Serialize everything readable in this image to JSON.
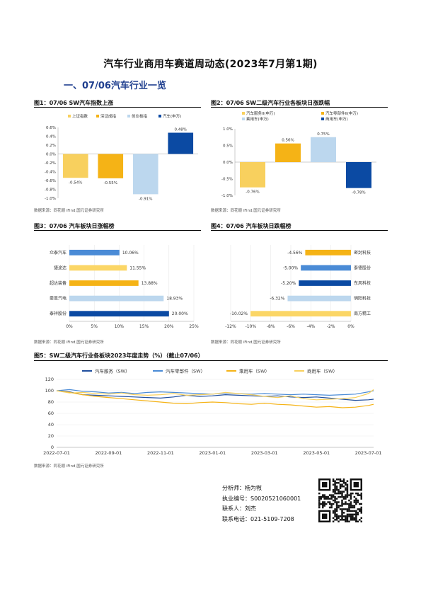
{
  "title": "汽车行业商用车赛道周动态(2023年7月第1期)",
  "section": "一、07/06汽车行业一览",
  "source_note": "数据来源：同花顺 iFind,国元证券研究所",
  "charts": {
    "fig1": {
      "title": "图1：07/06 SW汽车指数上涨",
      "chart_data": {
        "type": "bar",
        "categories": [
          "上证指数",
          "深证成指",
          "创业板指",
          "汽车(申万)"
        ],
        "values": [
          -0.54,
          -0.55,
          -0.91,
          0.48
        ],
        "value_labels": [
          "-0.54%",
          "-0.55%",
          "-0.91%",
          "0.48%"
        ],
        "colors": [
          "#f8d05e",
          "#f5b316",
          "#bcd7ee",
          "#0b4aa3"
        ],
        "yticks": [
          "0.6%",
          "0.4%",
          "0.2%",
          "0.0%",
          "-0.2%",
          "-0.4%",
          "-0.6%",
          "-0.8%",
          "-1.0%"
        ],
        "ylim": [
          -1.0,
          0.6
        ],
        "legend_position": "top"
      }
    },
    "fig2": {
      "title": "图2：07/06 SW二级汽车行业各板块日涨跌幅",
      "chart_data": {
        "type": "bar",
        "categories": [
          "汽车服务II(申万)",
          "汽车零部件II(申万)",
          "乘用车(申万)",
          "商用车(申万)"
        ],
        "values": [
          -0.76,
          0.56,
          0.75,
          -0.78
        ],
        "value_labels": [
          "-0.76%",
          "0.56%",
          "0.75%",
          "-0.78%"
        ],
        "colors": [
          "#f8d05e",
          "#f5b316",
          "#bcd7ee",
          "#0b4aa3"
        ],
        "yticks": [
          "1.0%",
          "0.5%",
          "0.0%",
          "-0.5%",
          "-1.0%"
        ],
        "ylim": [
          -1.0,
          1.0
        ],
        "legend_position": "top"
      }
    },
    "fig3": {
      "title": "图3：07/06 汽车板块日涨幅榜",
      "chart_data": {
        "type": "bar",
        "orientation": "horizontal",
        "categories": [
          "众泰汽车",
          "捷途达",
          "超达装备",
          "豪恩汽电",
          "泰祥股份"
        ],
        "values": [
          10.06,
          11.55,
          13.88,
          18.93,
          20.0
        ],
        "value_labels": [
          "10.06%",
          "11.55%",
          "13.88%",
          "18.93%",
          "20.00%"
        ],
        "colors": [
          "#4a8bd6",
          "#fbd666",
          "#f5b316",
          "#bcd7ee",
          "#0b4aa3"
        ],
        "xticks": [
          "0%",
          "5%",
          "10%",
          "15%",
          "20%",
          "25%"
        ],
        "xlim": [
          0,
          25
        ]
      }
    },
    "fig4": {
      "title": "图4：07/06 汽车板块日跌幅榜",
      "chart_data": {
        "type": "bar",
        "orientation": "horizontal",
        "categories": [
          "密封科技",
          "泰德股份",
          "东风科技",
          "明阳科技",
          "南方精工"
        ],
        "values": [
          -4.56,
          -5.0,
          -5.2,
          -6.32,
          -10.02
        ],
        "value_labels": [
          "-4.56%",
          "-5.00%",
          "-5.20%",
          "-6.32%",
          "-10.02%"
        ],
        "colors": [
          "#f5b316",
          "#4a8bd6",
          "#0b4aa3",
          "#bcd7ee",
          "#fbd666"
        ],
        "xticks": [
          "-12%",
          "-10%",
          "-8%",
          "-6%",
          "-4%",
          "-2%",
          "0%"
        ],
        "xlim": [
          -12,
          0
        ]
      }
    },
    "fig5": {
      "title": "图5：SW二级汽车行业各板块2023年度走势（%）（截止07/06）",
      "chart_data": {
        "type": "line",
        "xticks": [
          "2022-07-01",
          "2022-09-01",
          "2022-11-01",
          "2023-01-01",
          "2023-03-01",
          "2023-05-01",
          "2023-07-01"
        ],
        "yticks": [
          "120",
          "100",
          "80",
          "60",
          "40",
          "20",
          "0"
        ],
        "ylim": [
          0,
          120
        ],
        "x_months": [
          0,
          2,
          4,
          6,
          8,
          10,
          12
        ],
        "legend_position": "top",
        "series": [
          {
            "name": "汽车服务（SW）",
            "color": "#1f4e9e",
            "x": [
              0,
              0.5,
              1,
              1.5,
              2,
              2.5,
              3,
              3.5,
              4,
              4.5,
              5,
              5.5,
              6,
              6.5,
              7,
              7.5,
              8,
              8.5,
              9,
              9.5,
              10,
              10.5,
              11,
              11.5,
              12,
              12.2
            ],
            "y": [
              100,
              98,
              93,
              92,
              91,
              90,
              89,
              88,
              87,
              89,
              92,
              90,
              91,
              93,
              92,
              91,
              90,
              91,
              89,
              88,
              89,
              87,
              85,
              83,
              84,
              85
            ]
          },
          {
            "name": "汽车零部件（SW）",
            "color": "#4a8bd6",
            "x": [
              0,
              0.5,
              1,
              1.5,
              2,
              2.5,
              3,
              3.5,
              4,
              4.5,
              5,
              5.5,
              6,
              6.5,
              7,
              7.5,
              8,
              8.5,
              9,
              9.5,
              10,
              10.5,
              11,
              11.5,
              12,
              12.2
            ],
            "y": [
              100,
              102,
              99,
              98,
              96,
              97,
              95,
              97,
              98,
              97,
              96,
              95,
              94,
              96,
              95,
              94,
              95,
              94,
              93,
              94,
              93,
              92,
              93,
              94,
              98,
              100
            ]
          },
          {
            "name": "乘用车（SW）",
            "color": "#f5b316",
            "x": [
              0,
              0.5,
              1,
              1.5,
              2,
              2.5,
              3,
              3.5,
              4,
              4.5,
              5,
              5.5,
              6,
              6.5,
              7,
              7.5,
              8,
              8.5,
              9,
              9.5,
              10,
              10.5,
              11,
              11.5,
              12,
              12.2
            ],
            "y": [
              100,
              97,
              93,
              90,
              88,
              86,
              84,
              82,
              80,
              78,
              77,
              79,
              80,
              79,
              77,
              76,
              78,
              76,
              75,
              73,
              71,
              72,
              70,
              71,
              74,
              76
            ]
          },
          {
            "name": "商用车（SW）",
            "color": "#f8d05e",
            "x": [
              0,
              0.5,
              1,
              1.5,
              2,
              2.5,
              3,
              3.5,
              4,
              4.5,
              5,
              5.5,
              6,
              6.5,
              7,
              7.5,
              8,
              8.5,
              9,
              9.5,
              10,
              10.5,
              11,
              11.5,
              12,
              12.2
            ],
            "y": [
              100,
              96,
              97,
              95,
              94,
              96,
              93,
              92,
              93,
              95,
              92,
              93,
              94,
              97,
              95,
              93,
              90,
              88,
              91,
              86,
              84,
              85,
              86,
              88,
              95,
              102
            ]
          }
        ]
      }
    }
  },
  "analyst": {
    "name": "分析师：杨为敩",
    "license": "执业编号：S0020521060001",
    "contact": "联系人：刘杰",
    "phone": "联系电话：021-5109-7208"
  }
}
